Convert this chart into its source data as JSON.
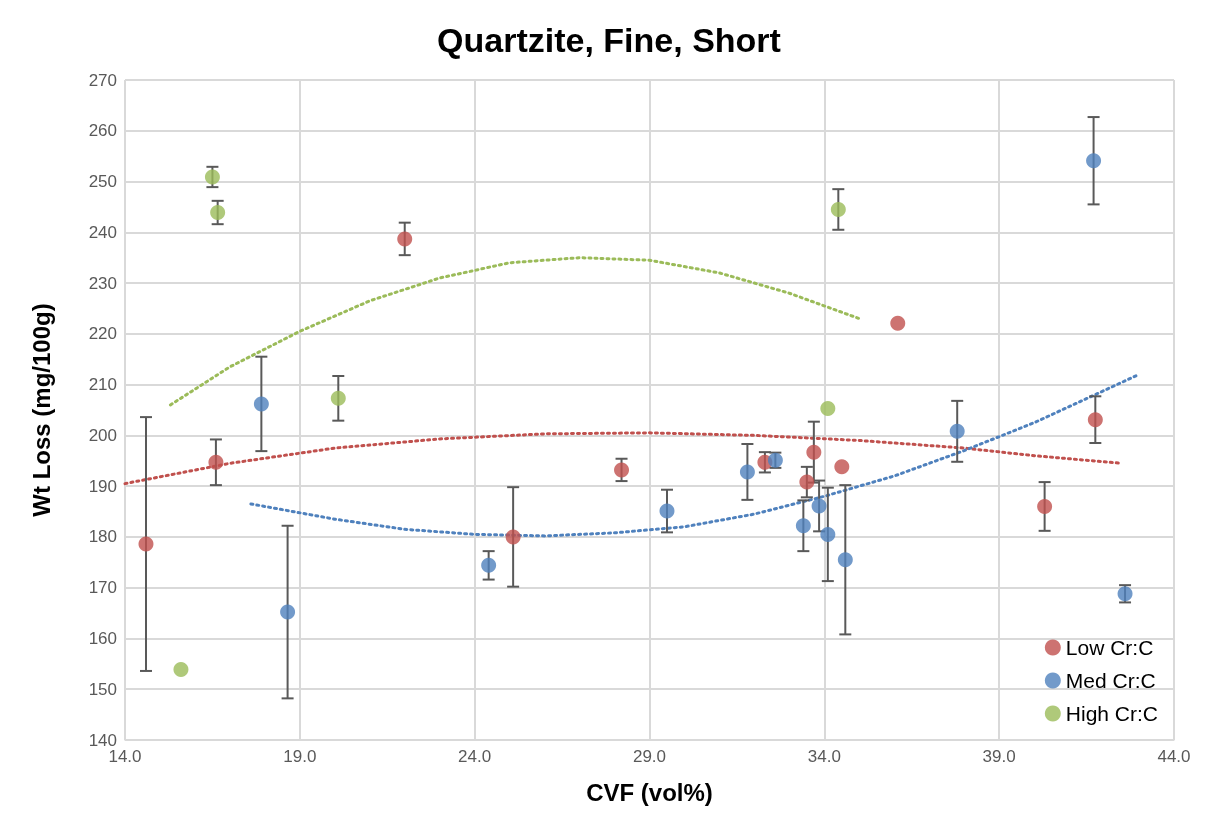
{
  "chart_data": {
    "type": "scatter",
    "title": "Quartzite, Fine, Short",
    "xlabel": "CVF (vol%)",
    "ylabel": "Wt Loss (mg/100g)",
    "xlim": [
      14,
      44
    ],
    "xticks": [
      {
        "value": 14,
        "label": "14.0"
      },
      {
        "value": 19,
        "label": "19.0"
      },
      {
        "value": 24,
        "label": "24.0"
      },
      {
        "value": 29,
        "label": "29.0"
      },
      {
        "value": 34,
        "label": "34.0"
      },
      {
        "value": 39,
        "label": "39.0"
      },
      {
        "value": 44,
        "label": "44.0"
      }
    ],
    "ylim": [
      140,
      270
    ],
    "yticks": [
      140,
      150,
      160,
      170,
      180,
      190,
      200,
      210,
      220,
      230,
      240,
      250,
      260,
      270
    ],
    "grid": true,
    "legend": "bottom right",
    "marker": "circle",
    "series": [
      {
        "name": "Low Cr:C",
        "color": "#c0504d",
        "x": [
          14.6,
          16.6,
          22.0,
          25.1,
          28.2,
          32.3,
          33.5,
          33.7,
          34.5,
          36.1,
          40.3,
          41.75
        ],
        "values": [
          178.6,
          194.7,
          238.7,
          180,
          193.2,
          194.7,
          190.8,
          196.7,
          193.8,
          222.1,
          186,
          203.1
        ],
        "errors": [
          25,
          4.5,
          3.2,
          9.8,
          2.2,
          2,
          3,
          6,
          null,
          null,
          4.8,
          4.6
        ]
      },
      {
        "name": "Med Cr:C",
        "color": "#4f81bd",
        "x": [
          17.9,
          18.65,
          24.4,
          29.5,
          31.8,
          32.6,
          33.4,
          33.85,
          34.1,
          34.6,
          37.8,
          41.7,
          42.6
        ],
        "values": [
          206.2,
          165.2,
          174.4,
          185.1,
          192.8,
          195.1,
          182.2,
          186.1,
          180.5,
          175.5,
          200.8,
          254.1,
          168.8
        ],
        "errors": [
          9.3,
          17,
          2.8,
          4.2,
          5.5,
          1.5,
          5,
          5,
          9.2,
          14.7,
          6,
          8.6,
          1.7
        ]
      },
      {
        "name": "High Cr:C",
        "color": "#9bbb59",
        "x": [
          16.5,
          16.65,
          15.6,
          20.1,
          34.4,
          34.1
        ],
        "values": [
          250.9,
          243.9,
          153.9,
          207.3,
          244.5,
          205.3
        ],
        "errors": [
          2,
          2.3,
          null,
          4.4,
          4,
          null
        ]
      },
      {
        "type": "line",
        "color": "#c0504d",
        "line_style": "dotted",
        "marker": "none",
        "x": [
          14,
          17,
          20,
          23,
          26,
          29,
          32,
          35,
          38,
          40,
          42.5
        ],
        "values": [
          190.5,
          194.5,
          197.5,
          199.3,
          200.3,
          200.5,
          200,
          199,
          197.5,
          196,
          194.5
        ]
      },
      {
        "type": "line",
        "color": "#4f81bd",
        "line_style": "dotted",
        "marker": "none",
        "x": [
          17.6,
          20,
          22,
          24,
          26,
          28,
          30,
          32,
          34,
          36,
          38,
          40,
          43
        ],
        "values": [
          186.5,
          183.5,
          181.5,
          180.5,
          180.2,
          180.8,
          182,
          184.5,
          188,
          192,
          197,
          202.5,
          212
        ]
      },
      {
        "type": "line",
        "color": "#9bbb59",
        "line_style": "dotted",
        "marker": "none",
        "x": [
          15.3,
          17,
          19,
          21,
          23,
          25,
          27,
          29,
          31,
          33,
          35
        ],
        "values": [
          206,
          213.5,
          220.5,
          226.5,
          231,
          234,
          235,
          234.5,
          232,
          228,
          223
        ]
      }
    ]
  }
}
